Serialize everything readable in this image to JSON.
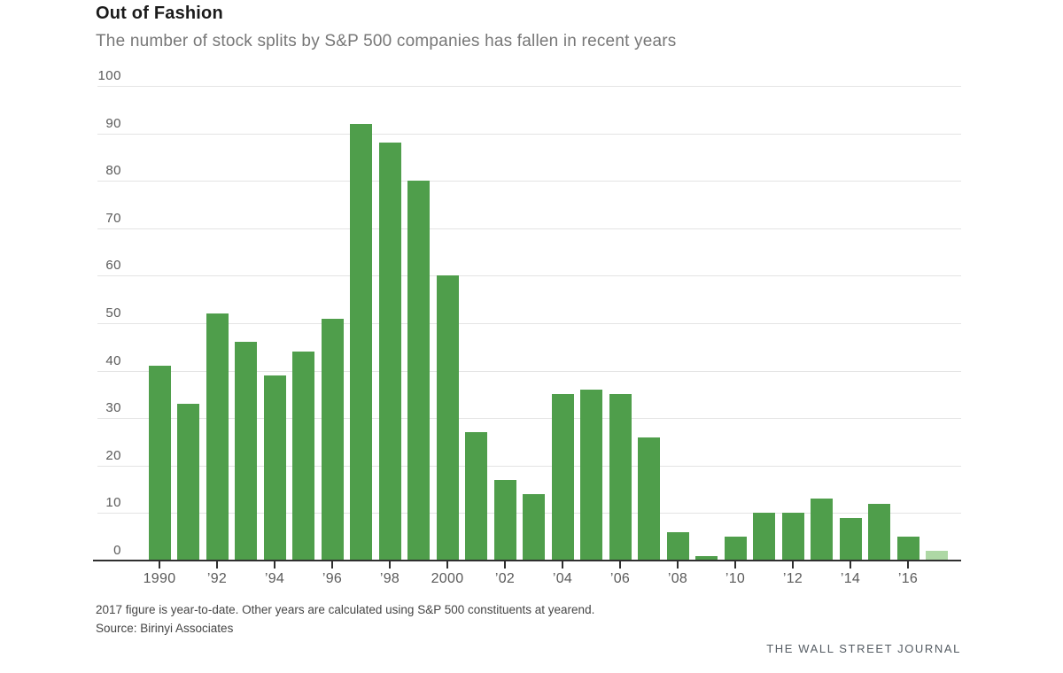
{
  "header": {
    "title": "Out of Fashion",
    "subtitle": "The number of stock splits by S&P 500 companies has fallen in recent years"
  },
  "chart_data": {
    "type": "bar",
    "title": "Out of Fashion",
    "subtitle": "The number of stock splits by S&P 500 companies has fallen in recent years",
    "categories": [
      1990,
      1991,
      1992,
      1993,
      1994,
      1995,
      1996,
      1997,
      1998,
      1999,
      2000,
      2001,
      2002,
      2003,
      2004,
      2005,
      2006,
      2007,
      2008,
      2009,
      2010,
      2011,
      2012,
      2013,
      2014,
      2015,
      2016,
      2017
    ],
    "values": [
      41,
      33,
      52,
      46,
      39,
      44,
      51,
      92,
      88,
      80,
      60,
      27,
      17,
      14,
      35,
      36,
      35,
      26,
      6,
      1,
      5,
      10,
      10,
      13,
      9,
      12,
      5,
      2
    ],
    "bar_color": "#4f9e4b",
    "last_bar_color": "#aed8a5",
    "last_bar_note": "2017 bar is lighter because figure is year-to-date",
    "ylim": [
      0,
      100
    ],
    "ytick_step": 10,
    "ytick_labels": [
      "0",
      "10",
      "20",
      "30",
      "40",
      "50",
      "60",
      "70",
      "80",
      "90",
      "100"
    ],
    "xtick_labels": [
      "1990",
      "’92",
      "’94",
      "’96",
      "’98",
      "2000",
      "’02",
      "’04",
      "’06",
      "’08",
      "’10",
      "’12",
      "’14",
      "’16"
    ],
    "xtick_years": [
      1990,
      1992,
      1994,
      1996,
      1998,
      2000,
      2002,
      2004,
      2006,
      2008,
      2010,
      2012,
      2014,
      2016
    ],
    "grid": "horizontal",
    "legend": "none",
    "xlabel": "",
    "ylabel": ""
  },
  "footer": {
    "note": "2017 figure is year-to-date. Other years are calculated using S&P 500 constituents at yearend.",
    "source": "Source: Birinyi Associates",
    "attribution": "THE WALL STREET JOURNAL"
  }
}
